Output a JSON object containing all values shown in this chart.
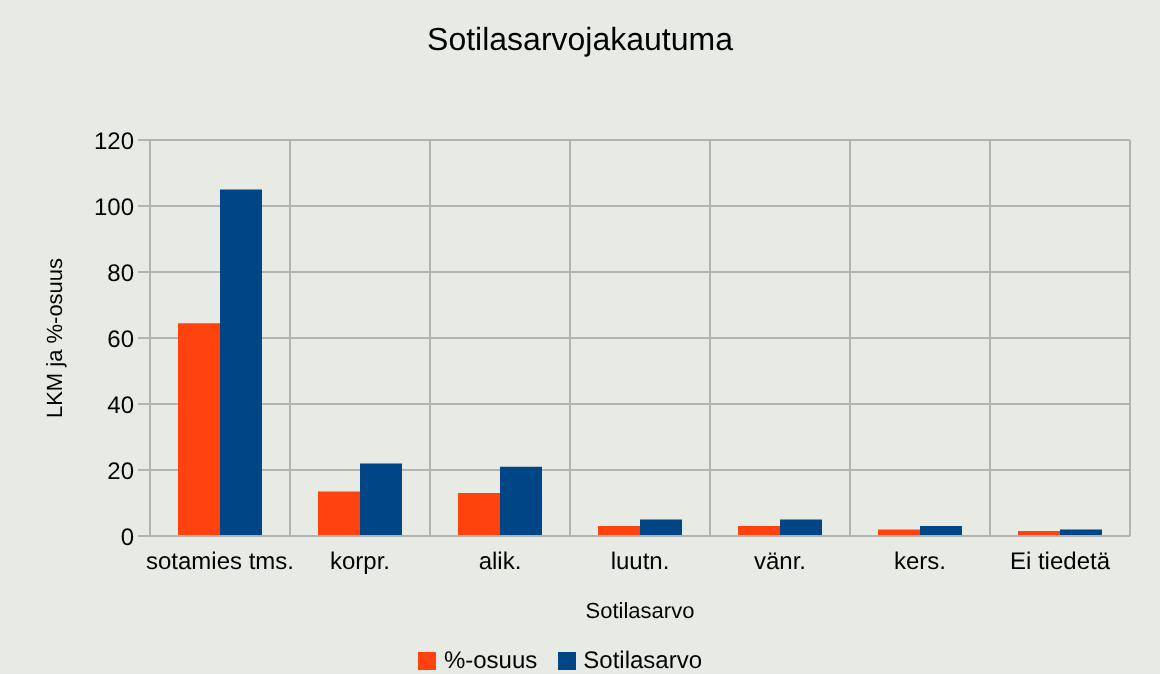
{
  "chart_data": {
    "type": "bar",
    "title": "Sotilasarvojakautuma",
    "xlabel": "Sotilasarvo",
    "ylabel": "LKM ja %-osuus",
    "categories": [
      "sotamies tms.",
      "korpr.",
      "alik.",
      "luutn.",
      "vänr.",
      "kers.",
      "Ei tiedetä"
    ],
    "series": [
      {
        "name": "%-osuus",
        "color": "#ff420e",
        "values": [
          64.5,
          13.5,
          13,
          3,
          3,
          2,
          1.5
        ]
      },
      {
        "name": "Sotilasarvo",
        "color": "#004586",
        "values": [
          105,
          22,
          21,
          5,
          5,
          3,
          2
        ]
      }
    ],
    "ylim": [
      0,
      120
    ],
    "yticks": [
      0,
      20,
      40,
      60,
      80,
      100,
      120
    ],
    "grid": true,
    "legend": "bottom"
  }
}
